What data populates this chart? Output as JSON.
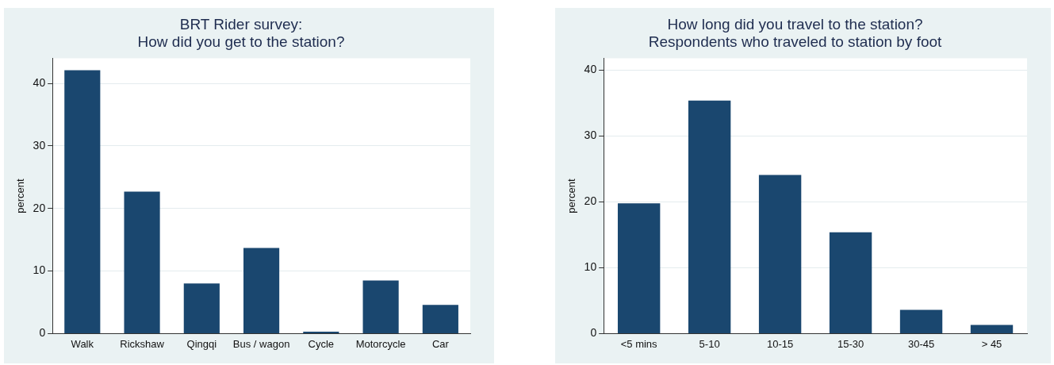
{
  "chart_data": [
    {
      "type": "bar",
      "title": "BRT Rider survey:\nHow did you get to the station?",
      "ylabel": "percent",
      "categories": [
        "Walk",
        "Rickshaw",
        "Qingqi",
        "Bus / wagon",
        "Cycle",
        "Motorcycle",
        "Car"
      ],
      "values": [
        42.1,
        22.7,
        8.0,
        13.7,
        0.3,
        8.5,
        4.6
      ],
      "color": "#1a476f",
      "ylim": [
        0,
        44
      ],
      "yticks": [
        0,
        10,
        20,
        30,
        40
      ],
      "grid": "y",
      "legend": false
    },
    {
      "type": "bar",
      "title": "How long did you travel to the station?\nRespondents who traveled to station by foot",
      "ylabel": "percent",
      "categories": [
        "<5 mins",
        "5-10",
        "10-15",
        "15-30",
        "30-45",
        "> 45"
      ],
      "values": [
        19.8,
        35.4,
        24.1,
        15.4,
        3.6,
        1.3
      ],
      "color": "#1a476f",
      "ylim": [
        0,
        41.8
      ],
      "yticks": [
        0,
        10,
        20,
        30,
        40
      ],
      "grid": "y",
      "legend": false
    }
  ]
}
